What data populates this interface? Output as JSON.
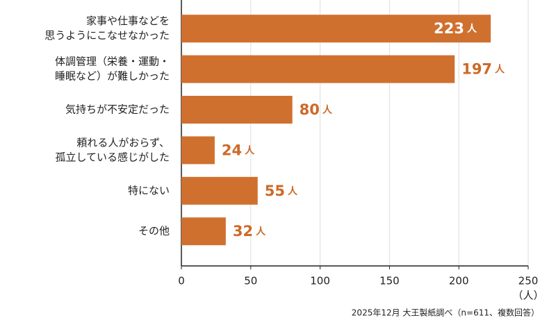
{
  "chart_data": {
    "type": "bar",
    "orientation": "horizontal",
    "categories": [
      [
        "家事や仕事などを",
        "思うようにこなせなかった"
      ],
      [
        "体調管理（栄養・運動・",
        "睡眠など）が難しかった"
      ],
      [
        "気持ちが不安定だった"
      ],
      [
        "頼れる人がおらず、",
        "孤立している感じがした"
      ],
      [
        "特にない"
      ],
      [
        "その他"
      ]
    ],
    "values": [
      223,
      197,
      80,
      24,
      55,
      32
    ],
    "value_unit": "人",
    "color": "#d0702f",
    "xlim": [
      0,
      250
    ],
    "xticks": [
      0,
      50,
      100,
      150,
      200,
      250
    ],
    "x_label": "（人）",
    "grid": true,
    "note": "2025年12月 大王製紙調べ（n=611、複数回答）"
  }
}
